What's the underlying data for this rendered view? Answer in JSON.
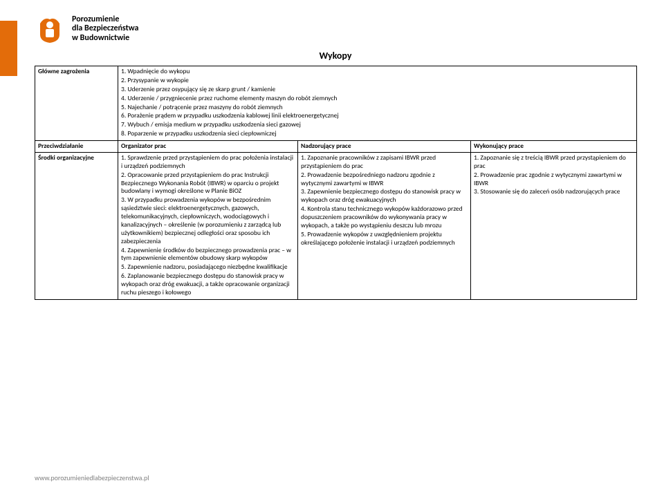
{
  "brand": {
    "line1": "Porozumienie",
    "line2": "dla Bezpieczeństwa",
    "line3": "w Budownictwie",
    "accent": "#e36c0a"
  },
  "title": "Wykopy",
  "rows": {
    "hazards_label": "Główne zagrożenia",
    "counter_label": "Przeciwdziałanie",
    "org_label": "Środki organizacyjne"
  },
  "hazards": [
    "1.  Wpadnięcie do wykopu",
    "2.  Przysypanie  w wykopie",
    "3.  Uderzenie przez osypujący się ze skarp grunt / kamienie",
    "4.  Uderzenie / przygniecenie przez ruchome elementy maszyn do robót ziemnych",
    "5.  Najechanie / potrącenie przez maszyny do robót ziemnych",
    "6.  Porażenie prądem w przypadku uszkodzenia kablowej linii elektroenergetycznej",
    "7.  Wybuch / emisja medium w przypadku uszkodzenia sieci gazowej",
    "8.  Poparzenie w przypadku uszkodzenia sieci ciepłowniczej"
  ],
  "headers": {
    "organizer": "Organizator prac",
    "supervisor": "Nadzorujący prace",
    "worker": "Wykonujący prace"
  },
  "organizer": [
    "1. Sprawdzenie przed przystąpieniem do prac położenia instalacji i urządzeń podziemnych",
    "2. Opracowanie przed przystąpieniem do prac Instrukcji Bezpiecznego Wykonania Robót (IBWR) w oparciu o projekt budowlany i wymogi określone w Planie BiOZ",
    "3. W przypadku prowadzenia wykopów w bezpośrednim sąsiedztwie sieci: elektroenergetycznych, gazowych, telekomunikacyjnych, ciepłowniczych, wodociągowych i kanalizacyjnych – określenie (w porozumieniu z zarządcą lub użytkownikiem) bezpiecznej odległości oraz sposobu ich zabezpieczenia",
    "4. Zapewnienie środków do bezpiecznego prowadzenia prac – w tym zapewnienie elementów obudowy skarp wykopów",
    "5. Zapewnienie nadzoru, posiadającego niezbędne kwalifikacje",
    "6. Zaplanowanie bezpiecznego dostępu do stanowisk pracy w wykopach oraz dróg ewakuacji, a także opracowanie organizacji ruchu pieszego i kołowego"
  ],
  "supervisor": [
    "1.  Zapoznanie pracowników z zapisami IBWR przed przystąpieniem do prac",
    "2. Prowadzenie bezpośredniego nadzoru zgodnie z wytycznymi zawartymi w IBWR",
    "3. Zapewnienie bezpiecznego dostępu do stanowisk pracy w wykopach oraz dróg ewakuacyjnych",
    "4. Kontrola stanu technicznego wykopów każdorazowo przed dopuszczeniem pracowników do wykonywania pracy w wykopach, a także po wystąpieniu deszczu lub mrozu",
    "5. Prowadzenie wykopów z uwzględnieniem projektu określającego położenie instalacji i urządzeń podziemnych"
  ],
  "worker": [
    "1. Zapoznanie się z treścią IBWR przed przystąpieniem do prac",
    "2.  Prowadzenie prac zgodnie z  wytycznymi zawartymi w IBWR",
    "3. Stosowanie się do zaleceń osób nadzorujących prace"
  ],
  "footer": "www.porozumieniedlabezpieczenstwa.pl",
  "colors": {
    "text": "#000000",
    "footer": "#808080",
    "border": "#000000"
  }
}
